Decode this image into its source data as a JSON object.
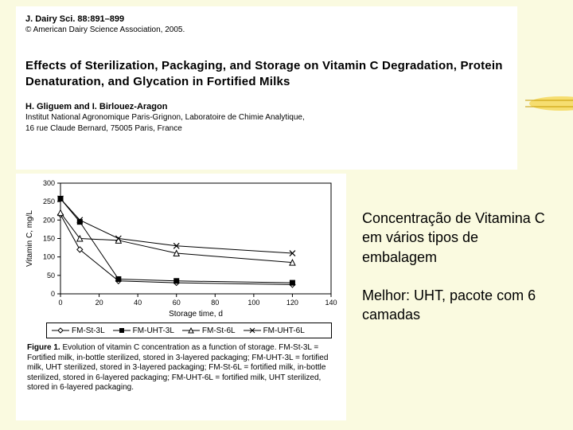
{
  "header": {
    "journal_ref": "J. Dairy Sci. 88:891–899",
    "copyright_symbol": "©",
    "copyright": "American Dairy Science Association, 2005.",
    "title": "Effects of Sterilization, Packaging, and Storage on Vitamin C Degradation, Protein Denaturation, and Glycation in Fortified Milks",
    "authors": "H. Gliguem and I. Birlouez-Aragon",
    "affiliation_line1": "Institut National Agronomique Paris-Grignon, Laboratoire de Chimie Analytique,",
    "affiliation_line2": "16 rue Claude Bernard, 75005 Paris, France"
  },
  "chart": {
    "type": "line",
    "xlabel": "Storage time, d",
    "ylabel": "Vitamin C, mg/L",
    "xlim": [
      0,
      140
    ],
    "ylim": [
      0,
      300
    ],
    "xticks": [
      0,
      20,
      40,
      60,
      80,
      100,
      120,
      140
    ],
    "yticks": [
      0,
      50,
      100,
      150,
      200,
      250,
      300
    ],
    "axis_color": "#000000",
    "background_color": "#ffffff",
    "label_fontsize": 10,
    "tick_fontsize": 9,
    "line_color": "#000000",
    "line_width": 1,
    "marker_size": 5,
    "series": [
      {
        "name": "FM-St-3L",
        "marker": "diamond-open",
        "x": [
          0,
          10,
          30,
          60,
          120
        ],
        "y": [
          215,
          120,
          35,
          30,
          25
        ]
      },
      {
        "name": "FM-UHT-3L",
        "marker": "square-filled",
        "x": [
          0,
          10,
          30,
          60,
          120
        ],
        "y": [
          258,
          195,
          40,
          35,
          30
        ]
      },
      {
        "name": "FM-St-6L",
        "marker": "triangle-open",
        "x": [
          0,
          10,
          30,
          60,
          120
        ],
        "y": [
          220,
          150,
          145,
          110,
          85
        ]
      },
      {
        "name": "FM-UHT-6L",
        "marker": "x",
        "x": [
          0,
          10,
          30,
          60,
          120
        ],
        "y": [
          258,
          200,
          150,
          130,
          110
        ]
      }
    ],
    "legend_items": [
      {
        "marker": "diamond-open",
        "label": "FM-St-3L"
      },
      {
        "marker": "square-filled",
        "label": "FM-UHT-3L"
      },
      {
        "marker": "triangle-open",
        "label": "FM-St-6L"
      },
      {
        "marker": "x",
        "label": "FM-UHT-6L"
      }
    ]
  },
  "caption": {
    "lead": "Figure 1.",
    "text": " Evolution of vitamin C concentration as a function of storage. FM-St-3L = Fortified milk, in-bottle sterilized, stored in 3-layered packaging; FM-UHT-3L = fortified milk, UHT sterilized, stored in 3-layered packaging; FM-St-6L = fortified milk, in-bottle sterilized, stored in 6-layered packaging; FM-UHT-6L = fortified milk, UHT sterilized, stored in 6-layered packaging."
  },
  "side": {
    "p1": "Concentração de Vitamina C em vários tipos de embalagem",
    "p2": "Melhor: UHT, pacote com 6 camadas"
  },
  "colors": {
    "page_bg": "#fafae0",
    "panel_bg": "#ffffff",
    "deco_yellow": "#f2c200",
    "deco_line": "#c59a00"
  }
}
